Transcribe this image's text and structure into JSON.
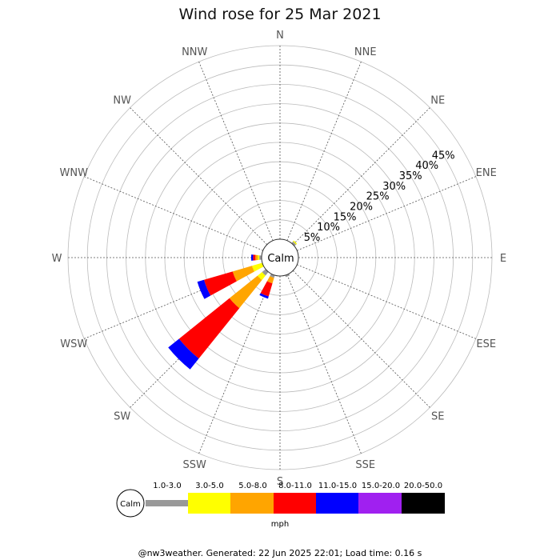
{
  "chart_data": {
    "type": "wind-rose",
    "title": "Wind rose for 25 Mar 2021",
    "directions": [
      "N",
      "NNE",
      "NE",
      "ENE",
      "E",
      "ESE",
      "SE",
      "SSE",
      "S",
      "SSW",
      "SW",
      "WSW",
      "W",
      "WNW",
      "NW",
      "NNW"
    ],
    "ring_labels": [
      "5%",
      "10%",
      "15%",
      "20%",
      "25%",
      "30%",
      "35%",
      "40%",
      "45%"
    ],
    "ring_values": [
      5,
      10,
      15,
      20,
      25,
      30,
      35,
      40,
      45
    ],
    "rmax": 50,
    "calm_label": "Calm",
    "speed_unit": "mph",
    "bins": [
      {
        "label": "1.0-3.0",
        "color": "#999999"
      },
      {
        "label": "3.0-5.0",
        "color": "#ffff00"
      },
      {
        "label": "5.0-8.0",
        "color": "#ffa500"
      },
      {
        "label": "8.0-11.0",
        "color": "#ff0000"
      },
      {
        "label": "11.0-15.0",
        "color": "#0000ff"
      },
      {
        "label": "15.0-20.0",
        "color": "#a020f0"
      },
      {
        "label": "20.0-50.0",
        "color": "#000000"
      }
    ],
    "series": [
      {
        "direction": "NE",
        "segments": [
          0.6,
          0.3,
          0,
          0,
          0,
          0,
          0
        ]
      },
      {
        "direction": "SSE",
        "segments": [
          0.5,
          0,
          0,
          0,
          0,
          0,
          0
        ]
      },
      {
        "direction": "S",
        "segments": [
          0,
          0,
          0,
          0,
          0,
          0,
          0
        ]
      },
      {
        "direction": "SSW",
        "segments": [
          0.7,
          0,
          1.5,
          3.5,
          0.6,
          0,
          0
        ]
      },
      {
        "direction": "SW",
        "segments": [
          1.2,
          1.5,
          9.3,
          16.7,
          3.6,
          0,
          0
        ]
      },
      {
        "direction": "WSW",
        "segments": [
          0,
          2.8,
          5.2,
          7.7,
          1.8,
          0,
          0
        ]
      },
      {
        "direction": "W",
        "segments": [
          0.6,
          0.4,
          0.6,
          0.6,
          0.5,
          0,
          0
        ]
      }
    ]
  },
  "legend": {
    "calm_label": "Calm",
    "unit": "mph"
  },
  "footer": {
    "text": "@nw3weather. Generated: 22 Jun 2025 22:01; Load time: 0.16 s"
  }
}
